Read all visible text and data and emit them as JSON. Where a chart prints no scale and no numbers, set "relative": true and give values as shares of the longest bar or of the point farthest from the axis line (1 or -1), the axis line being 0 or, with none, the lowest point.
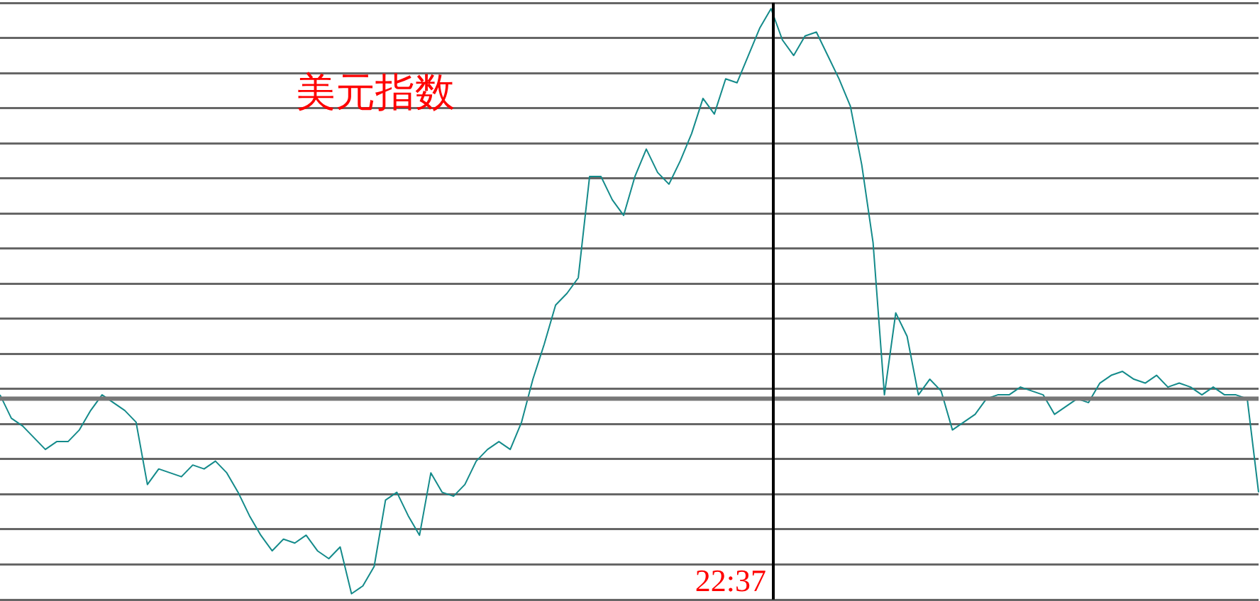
{
  "chart_data": {
    "type": "line",
    "title": "美元指数",
    "relative": true,
    "grid": "y",
    "marker": "none",
    "line_style": "solid",
    "legend": false,
    "tick_labels": false,
    "categories": [
      null,
      null,
      null,
      null,
      null,
      null,
      null,
      null,
      null,
      null,
      null,
      null,
      null,
      null,
      null,
      null,
      null,
      null,
      null,
      null,
      null,
      null,
      null,
      null,
      null,
      null,
      null,
      null,
      null,
      null,
      null,
      null,
      null,
      null,
      null,
      null,
      null,
      null,
      null,
      null,
      null,
      null,
      null,
      null,
      null,
      null,
      null,
      null,
      null,
      null,
      null,
      null,
      null,
      null,
      null,
      null,
      null,
      null,
      null,
      null,
      null,
      null,
      null,
      null,
      null,
      null,
      null,
      null,
      null,
      null,
      null,
      null,
      null,
      null,
      null,
      null,
      null,
      null,
      null,
      null,
      null,
      null,
      null,
      null,
      null,
      null,
      null,
      null,
      null,
      null,
      null,
      null,
      null,
      null,
      null,
      null,
      null,
      null,
      null,
      null,
      null,
      null,
      null,
      null,
      null,
      null,
      null,
      null,
      null,
      null,
      null,
      null
    ],
    "series": [
      {
        "color": "#138a8a",
        "values": [
          0.01,
          -0.05,
          -0.07,
          -0.1,
          -0.13,
          -0.11,
          -0.11,
          -0.08,
          -0.03,
          0.01,
          -0.01,
          -0.03,
          -0.06,
          -0.22,
          -0.18,
          -0.19,
          -0.2,
          -0.17,
          -0.18,
          -0.16,
          -0.19,
          -0.24,
          -0.3,
          -0.35,
          -0.39,
          -0.36,
          -0.37,
          -0.35,
          -0.39,
          -0.41,
          -0.38,
          -0.5,
          -0.48,
          -0.43,
          -0.26,
          -0.24,
          -0.3,
          -0.35,
          -0.19,
          -0.24,
          -0.25,
          -0.22,
          -0.16,
          -0.13,
          -0.11,
          -0.13,
          -0.06,
          0.05,
          0.14,
          0.24,
          0.27,
          0.31,
          0.57,
          0.57,
          0.51,
          0.47,
          0.57,
          0.64,
          0.58,
          0.55,
          0.61,
          0.68,
          0.77,
          0.73,
          0.82,
          0.81,
          0.88,
          0.95,
          1,
          0.92,
          0.88,
          0.93,
          0.94,
          0.88,
          0.82,
          0.75,
          0.6,
          0.4,
          0.01,
          0.22,
          0.16,
          0.01,
          0.05,
          0.02,
          -0.08,
          -0.06,
          -0.04,
          0,
          0.01,
          0.01,
          0.03,
          0.02,
          0.01,
          -0.04,
          -0.02,
          0,
          -0.01,
          0.04,
          0.06,
          0.07,
          0.05,
          0.04,
          0.06,
          0.03,
          0.04,
          0.03,
          0.01,
          0.03,
          0.01,
          0.01,
          0,
          -0.24
        ]
      }
    ],
    "annotations": [
      "22:37"
    ]
  }
}
